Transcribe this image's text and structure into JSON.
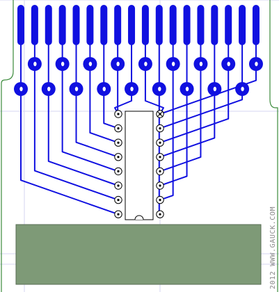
{
  "credit": "2012 WWW.GAUCK.COM",
  "colors": {
    "board": "#ffffff",
    "outline": "#3a8a3a",
    "grid": "#d6d6f2",
    "trace": "#1010e0",
    "pad_hole": "#ffffff",
    "ic_pad": "#000000",
    "label_area": "#7e9a77",
    "label_border": "#5a6e55"
  },
  "board": {
    "edge_fingers": 18,
    "through_hole_pads": 18,
    "ic_pins_per_side": 8,
    "ic_pins_total": 16
  }
}
